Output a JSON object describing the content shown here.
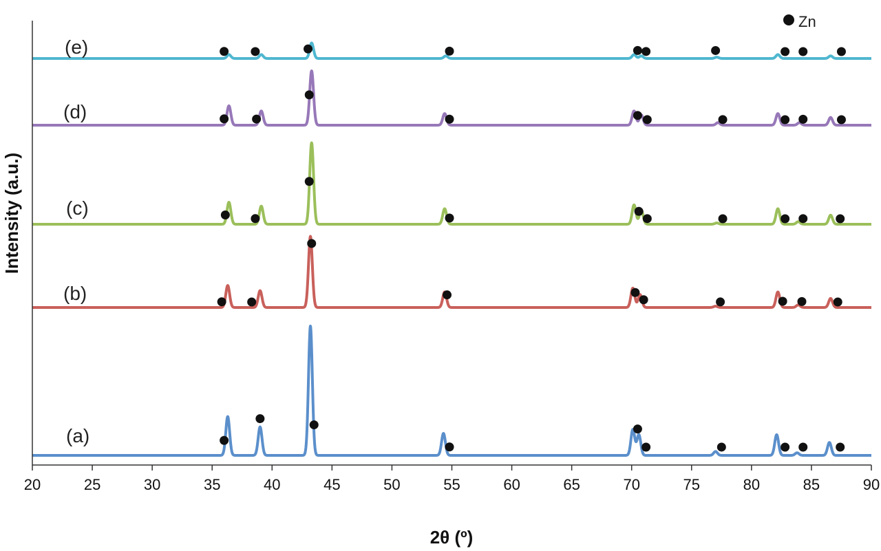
{
  "chart_data": {
    "type": "line",
    "xlabel": "2θ (º)",
    "ylabel": "Intensity (a.u.)",
    "xlim": [
      20,
      90
    ],
    "xticks": [
      20,
      25,
      30,
      35,
      40,
      45,
      50,
      55,
      60,
      65,
      70,
      75,
      80,
      85,
      90
    ],
    "grid": false,
    "legend": {
      "marker": "filled-circle",
      "label": "Zn",
      "placement": "top-right"
    },
    "series": [
      {
        "name": "(a)",
        "color": "#5b8fcb",
        "peaks": [
          [
            36.3,
            0.3
          ],
          [
            39.0,
            0.22
          ],
          [
            43.2,
            1.0
          ],
          [
            54.3,
            0.17
          ],
          [
            70.1,
            0.2
          ],
          [
            70.6,
            0.16
          ],
          [
            77.0,
            0.03
          ],
          [
            82.1,
            0.16
          ],
          [
            83.8,
            0.02
          ],
          [
            86.5,
            0.1
          ]
        ],
        "markers": [
          36.0,
          39.0,
          43.5,
          54.8,
          70.5,
          71.2,
          77.5,
          82.8,
          84.3,
          87.4
        ]
      },
      {
        "name": "(b)",
        "color": "#c9605b",
        "peaks": [
          [
            36.3,
            0.17
          ],
          [
            39.0,
            0.13
          ],
          [
            43.2,
            0.55
          ],
          [
            54.4,
            0.12
          ],
          [
            70.1,
            0.15
          ],
          [
            70.7,
            0.1
          ],
          [
            77.0,
            0.01
          ],
          [
            82.2,
            0.12
          ],
          [
            83.9,
            0.02
          ],
          [
            86.6,
            0.07
          ]
        ],
        "markers": [
          35.8,
          38.3,
          43.3,
          54.6,
          70.3,
          71.0,
          77.4,
          82.6,
          84.2,
          87.2
        ]
      },
      {
        "name": "(c)",
        "color": "#9bbf5a",
        "peaks": [
          [
            36.4,
            0.17
          ],
          [
            39.1,
            0.14
          ],
          [
            43.3,
            0.63
          ],
          [
            54.4,
            0.12
          ],
          [
            70.2,
            0.15
          ],
          [
            70.8,
            0.11
          ],
          [
            77.1,
            0.01
          ],
          [
            82.2,
            0.12
          ],
          [
            83.9,
            0.02
          ],
          [
            86.6,
            0.07
          ]
        ],
        "markers": [
          36.1,
          38.6,
          43.1,
          54.8,
          70.6,
          71.3,
          77.6,
          82.8,
          84.3,
          87.4
        ]
      },
      {
        "name": "(d)",
        "color": "#9778b8",
        "peaks": [
          [
            36.4,
            0.15
          ],
          [
            39.1,
            0.11
          ],
          [
            43.3,
            0.42
          ],
          [
            54.4,
            0.09
          ],
          [
            70.2,
            0.11
          ],
          [
            70.8,
            0.08
          ],
          [
            77.2,
            0.02
          ],
          [
            82.2,
            0.09
          ],
          [
            84.0,
            0.02
          ],
          [
            86.6,
            0.06
          ]
        ],
        "markers": [
          36.0,
          38.7,
          43.1,
          54.8,
          70.5,
          71.3,
          77.6,
          82.8,
          84.3,
          87.5
        ]
      },
      {
        "name": "(e)",
        "color": "#4fb7d0",
        "peaks": [
          [
            36.4,
            0.03
          ],
          [
            39.1,
            0.03
          ],
          [
            43.3,
            0.12
          ],
          [
            54.5,
            0.02
          ],
          [
            70.2,
            0.03
          ],
          [
            70.8,
            0.02
          ],
          [
            77.1,
            0.01
          ],
          [
            82.2,
            0.03
          ],
          [
            86.6,
            0.02
          ]
        ],
        "markers": [
          36.0,
          38.6,
          43.0,
          54.8,
          70.5,
          71.2,
          77.0,
          82.8,
          84.3,
          87.5
        ]
      }
    ]
  }
}
